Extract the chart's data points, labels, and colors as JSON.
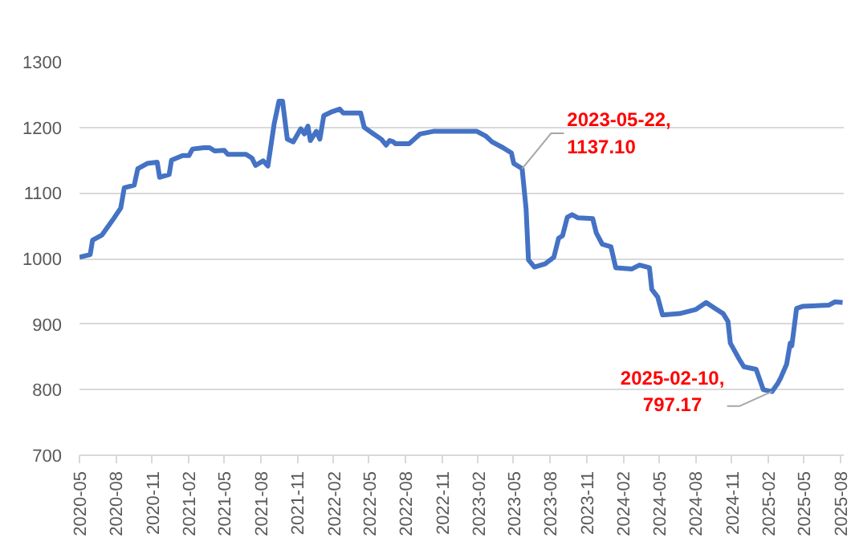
{
  "chart_data": {
    "type": "line",
    "color": "#4472c4",
    "grid": "y",
    "xlim": [
      "2020-05-01",
      "2025-08-10"
    ],
    "ylim": [
      700,
      1300
    ],
    "yticks": [
      700,
      800,
      900,
      1000,
      1100,
      1200,
      1300
    ],
    "xticks": [
      "2020-05",
      "2020-08",
      "2020-11",
      "2021-02",
      "2021-05",
      "2021-08",
      "2021-11",
      "2022-02",
      "2022-05",
      "2022-08",
      "2022-11",
      "2023-02",
      "2023-05",
      "2023-08",
      "2023-11",
      "2024-02",
      "2024-05",
      "2024-08",
      "2024-11",
      "2025-02",
      "2025-05",
      "2025-08"
    ],
    "x": [
      "2020-05-01",
      "2020-05-28",
      "2020-06-03",
      "2020-06-27",
      "2020-07-24",
      "2020-08-13",
      "2020-08-22",
      "2020-09-16",
      "2020-09-25",
      "2020-10-19",
      "2020-11-13",
      "2020-11-19",
      "2020-12-13",
      "2020-12-19",
      "2021-01-16",
      "2021-02-01",
      "2021-02-10",
      "2021-03-10",
      "2021-03-25",
      "2021-04-07",
      "2021-05-01",
      "2021-05-10",
      "2021-06-25",
      "2021-07-10",
      "2021-07-19",
      "2021-08-07",
      "2021-08-19",
      "2021-09-04",
      "2021-09-16",
      "2021-09-25",
      "2021-10-07",
      "2021-10-22",
      "2021-11-10",
      "2021-11-19",
      "2021-11-28",
      "2021-12-04",
      "2021-12-19",
      "2021-12-28",
      "2022-01-07",
      "2022-01-28",
      "2022-02-16",
      "2022-02-25",
      "2022-04-10",
      "2022-04-19",
      "2022-05-10",
      "2022-06-01",
      "2022-06-13",
      "2022-06-22",
      "2022-07-01",
      "2022-07-07",
      "2022-08-10",
      "2022-09-07",
      "2022-10-10",
      "2023-01-28",
      "2023-02-19",
      "2023-03-07",
      "2023-04-04",
      "2023-04-25",
      "2023-05-01",
      "2023-05-22",
      "2023-06-01",
      "2023-06-07",
      "2023-06-22",
      "2023-07-19",
      "2023-08-10",
      "2023-08-22",
      "2023-09-01",
      "2023-09-13",
      "2023-09-25",
      "2023-10-10",
      "2023-11-16",
      "2023-11-25",
      "2023-12-10",
      "2024-01-01",
      "2024-01-13",
      "2024-02-22",
      "2024-03-13",
      "2024-04-07",
      "2024-04-13",
      "2024-04-28",
      "2024-05-10",
      "2024-06-22",
      "2024-08-01",
      "2024-08-28",
      "2024-09-19",
      "2024-10-10",
      "2024-10-22",
      "2024-10-28",
      "2024-11-19",
      "2024-12-01",
      "2025-01-01",
      "2025-01-19",
      "2025-02-10",
      "2025-02-25",
      "2025-03-04",
      "2025-03-19",
      "2025-03-28",
      "2025-04-01",
      "2025-04-13",
      "2025-04-28",
      "2025-07-04",
      "2025-07-19",
      "2025-08-07"
    ],
    "values": [
      1002,
      1006,
      1028,
      1036,
      1059,
      1077,
      1108,
      1112,
      1137,
      1145,
      1147,
      1124,
      1128,
      1150,
      1157,
      1157,
      1167,
      1169,
      1169,
      1164,
      1165,
      1159,
      1159,
      1153,
      1142,
      1149,
      1141,
      1206,
      1240,
      1240,
      1182,
      1178,
      1198,
      1190,
      1202,
      1180,
      1194,
      1182,
      1218,
      1224,
      1228,
      1222,
      1222,
      1200,
      1191,
      1182,
      1173,
      1180,
      1178,
      1175,
      1175,
      1190,
      1194,
      1194,
      1187,
      1178,
      1169,
      1161,
      1145,
      1137.1,
      1076,
      998,
      987,
      992,
      1002,
      1031,
      1035,
      1063,
      1067,
      1062,
      1061,
      1039,
      1022,
      1018,
      986,
      984,
      990,
      986,
      953,
      941,
      914,
      916,
      922,
      933,
      924,
      916,
      904,
      871,
      847,
      835,
      831,
      800,
      797.17,
      810,
      818,
      839,
      871,
      867,
      924,
      927,
      929,
      934,
      933
    ],
    "annotations": [
      {
        "text": "2023-05-22,\n1137.10",
        "x": "2023-05-22",
        "y": 1137.1
      },
      {
        "text": "2025-02-10,\n797.17",
        "x": "2025-02-10",
        "y": 797.17
      }
    ]
  }
}
